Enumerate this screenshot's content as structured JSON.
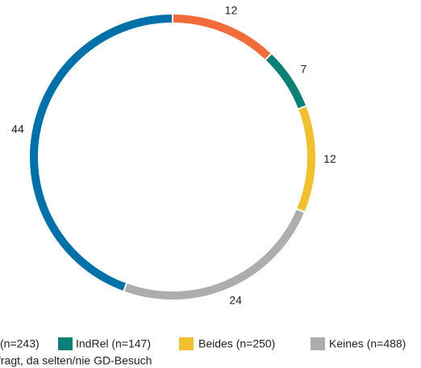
{
  "chart_data": {
    "type": "donut",
    "categories": [
      "(n=243)",
      "IndRel (n=147)",
      "Beides (n=250)",
      "Keines (n=488)",
      null
    ],
    "values": [
      12,
      7,
      12,
      24,
      44
    ],
    "colors": [
      "#f26b3a",
      "#0e7f74",
      "#f0c02f",
      "#adadad",
      "#0071a8"
    ],
    "footnote": "fragt, da selten/nie GD-Besuch"
  }
}
